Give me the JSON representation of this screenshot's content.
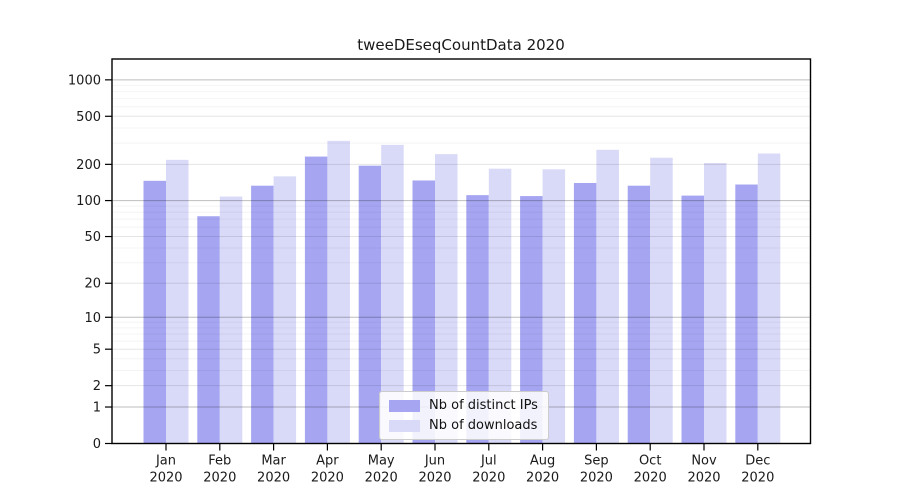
{
  "chart_data": {
    "type": "bar",
    "title": "tweeDEseqCountData 2020",
    "categories": [
      "Jan",
      "Feb",
      "Mar",
      "Apr",
      "May",
      "Jun",
      "Jul",
      "Aug",
      "Sep",
      "Oct",
      "Nov",
      "Dec"
    ],
    "x_year_label": "2020",
    "series": [
      {
        "name": "Nb of distinct IPs",
        "color": "#a5a5f2",
        "values": [
          146,
          74,
          133,
          232,
          195,
          147,
          111,
          109,
          140,
          133,
          110,
          136
        ]
      },
      {
        "name": "Nb of downloads",
        "color": "#d9d9f8",
        "values": [
          218,
          108,
          159,
          313,
          290,
          243,
          184,
          182,
          264,
          227,
          205,
          246
        ]
      }
    ],
    "y_ticks": [
      0,
      1,
      2,
      5,
      10,
      20,
      50,
      100,
      200,
      500,
      1000
    ],
    "y_scale": "log10(1+value)",
    "ylim": [
      0,
      1500
    ],
    "grid": "horizontal",
    "legend_position": "lower center"
  },
  "colors": {
    "background": "#ffffff",
    "axis": "#000000",
    "tick_text": "#1a1a1a",
    "grid_decade": "rgba(0,0,0,0.26)",
    "grid_labeled": "rgba(0,0,0,0.10)",
    "grid_minor": "rgba(0,0,0,0.045)",
    "legend_border": "#cccccc"
  }
}
